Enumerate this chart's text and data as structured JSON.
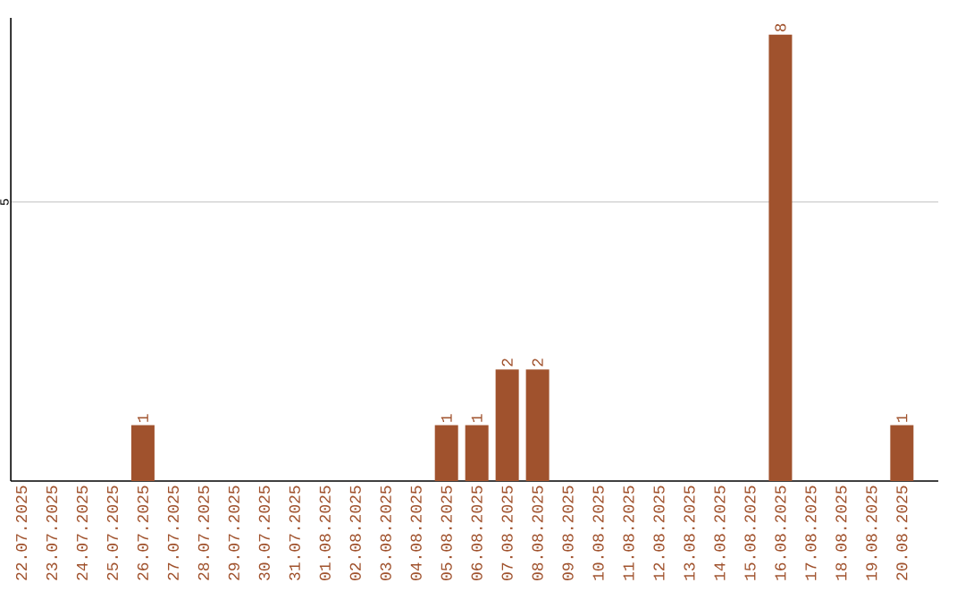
{
  "chart_data": {
    "type": "bar",
    "categories": [
      "22.07.2025",
      "23.07.2025",
      "24.07.2025",
      "25.07.2025",
      "26.07.2025",
      "27.07.2025",
      "28.07.2025",
      "29.07.2025",
      "30.07.2025",
      "31.07.2025",
      "01.08.2025",
      "02.08.2025",
      "03.08.2025",
      "04.08.2025",
      "05.08.2025",
      "06.08.2025",
      "07.08.2025",
      "08.08.2025",
      "09.08.2025",
      "10.08.2025",
      "11.08.2025",
      "12.08.2025",
      "13.08.2025",
      "14.08.2025",
      "15.08.2025",
      "16.08.2025",
      "17.08.2025",
      "18.08.2025",
      "19.08.2025",
      "20.08.2025"
    ],
    "values": [
      0,
      0,
      0,
      0,
      1,
      0,
      0,
      0,
      0,
      0,
      0,
      0,
      0,
      0,
      1,
      1,
      2,
      2,
      0,
      0,
      0,
      0,
      0,
      0,
      0,
      8,
      0,
      0,
      0,
      1
    ],
    "value_labels": [
      null,
      null,
      null,
      null,
      "1",
      null,
      null,
      null,
      null,
      null,
      null,
      null,
      null,
      null,
      "1",
      "1",
      "2",
      "2",
      null,
      null,
      null,
      null,
      null,
      null,
      null,
      "8",
      null,
      null,
      null,
      "1"
    ],
    "color": "#a0522d",
    "ylim": [
      0,
      8.3
    ],
    "yticks": [
      5
    ],
    "grid": "y"
  }
}
